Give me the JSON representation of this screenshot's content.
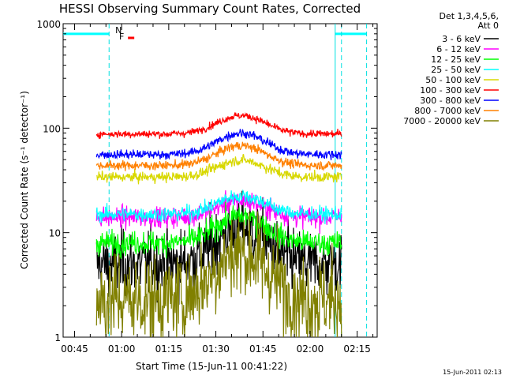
{
  "chart_data": {
    "type": "line",
    "title": "HESSI Observing Summary Count Rates, Corrected",
    "xlabel": "Start Time (15-Jun-11 00:41:22)",
    "ylabel": "Corrected Count Rate (s⁻¹ detector⁻¹)",
    "y_scale": "log",
    "ylim": [
      1,
      1000
    ],
    "y_ticks": [
      {
        "value": 1,
        "label": "1"
      },
      {
        "value": 10,
        "label": "10"
      },
      {
        "value": 100,
        "label": "100"
      },
      {
        "value": 1000,
        "label": "1000"
      }
    ],
    "xlim": [
      "00:41:22",
      "02:21:22"
    ],
    "x_ticks": [
      "00:45",
      "01:00",
      "01:15",
      "01:30",
      "01:45",
      "02:00",
      "02:15"
    ],
    "legend_header": [
      "Det 1,3,4,5,6,",
      "Att 0"
    ],
    "legend_position": "right",
    "grid": false,
    "series": [
      {
        "name": "3 - 6 keV",
        "color": "#000000",
        "base": 5.0,
        "peak_factor": 2.2,
        "noise": 0.22
      },
      {
        "name": "6 - 12 keV",
        "color": "#ff00ff",
        "base": 14,
        "peak_factor": 1.45,
        "noise": 0.07
      },
      {
        "name": "12 - 25 keV",
        "color": "#00ff00",
        "base": 8.0,
        "peak_factor": 1.8,
        "noise": 0.08
      },
      {
        "name": "25 - 50 keV",
        "color": "#00ffff",
        "base": 15,
        "peak_factor": 1.5,
        "noise": 0.05
      },
      {
        "name": "50 - 100 keV",
        "color": "#d8d800",
        "base": 34,
        "peak_factor": 1.45,
        "noise": 0.035
      },
      {
        "name": "100 - 300 keV",
        "color": "#ff0000",
        "base": 88,
        "peak_factor": 1.5,
        "noise": 0.025
      },
      {
        "name": "300 - 800 keV",
        "color": "#0000ff",
        "base": 56,
        "peak_factor": 1.6,
        "noise": 0.03
      },
      {
        "name": "800 - 7000 keV",
        "color": "#ff8000",
        "base": 44,
        "peak_factor": 1.55,
        "noise": 0.03
      },
      {
        "name": "7000 - 20000 keV",
        "color": "#808000",
        "base": 2.3,
        "peak_factor": 2.8,
        "noise": 0.3
      }
    ],
    "data_start": "00:52",
    "data_end": "02:10",
    "peak_time": "01:38",
    "annotations": [
      {
        "label": "N",
        "color": "#00ccff",
        "time": "00:59"
      },
      {
        "label": "F",
        "color": "#ff0000",
        "time": "01:00"
      }
    ],
    "night_bars": [
      {
        "from": "00:41:22",
        "to": "00:56",
        "color": "#00ffff"
      },
      {
        "from": "02:08",
        "to": "02:18",
        "color": "#00ffff"
      }
    ],
    "vertical_lines": [
      {
        "time": "00:56",
        "style": "dashed"
      },
      {
        "time": "02:08",
        "style": "solid"
      },
      {
        "time": "02:10",
        "style": "dashed"
      },
      {
        "time": "02:18",
        "style": "dashed"
      }
    ],
    "footer_date": "15-Jun-2011 02:13"
  }
}
